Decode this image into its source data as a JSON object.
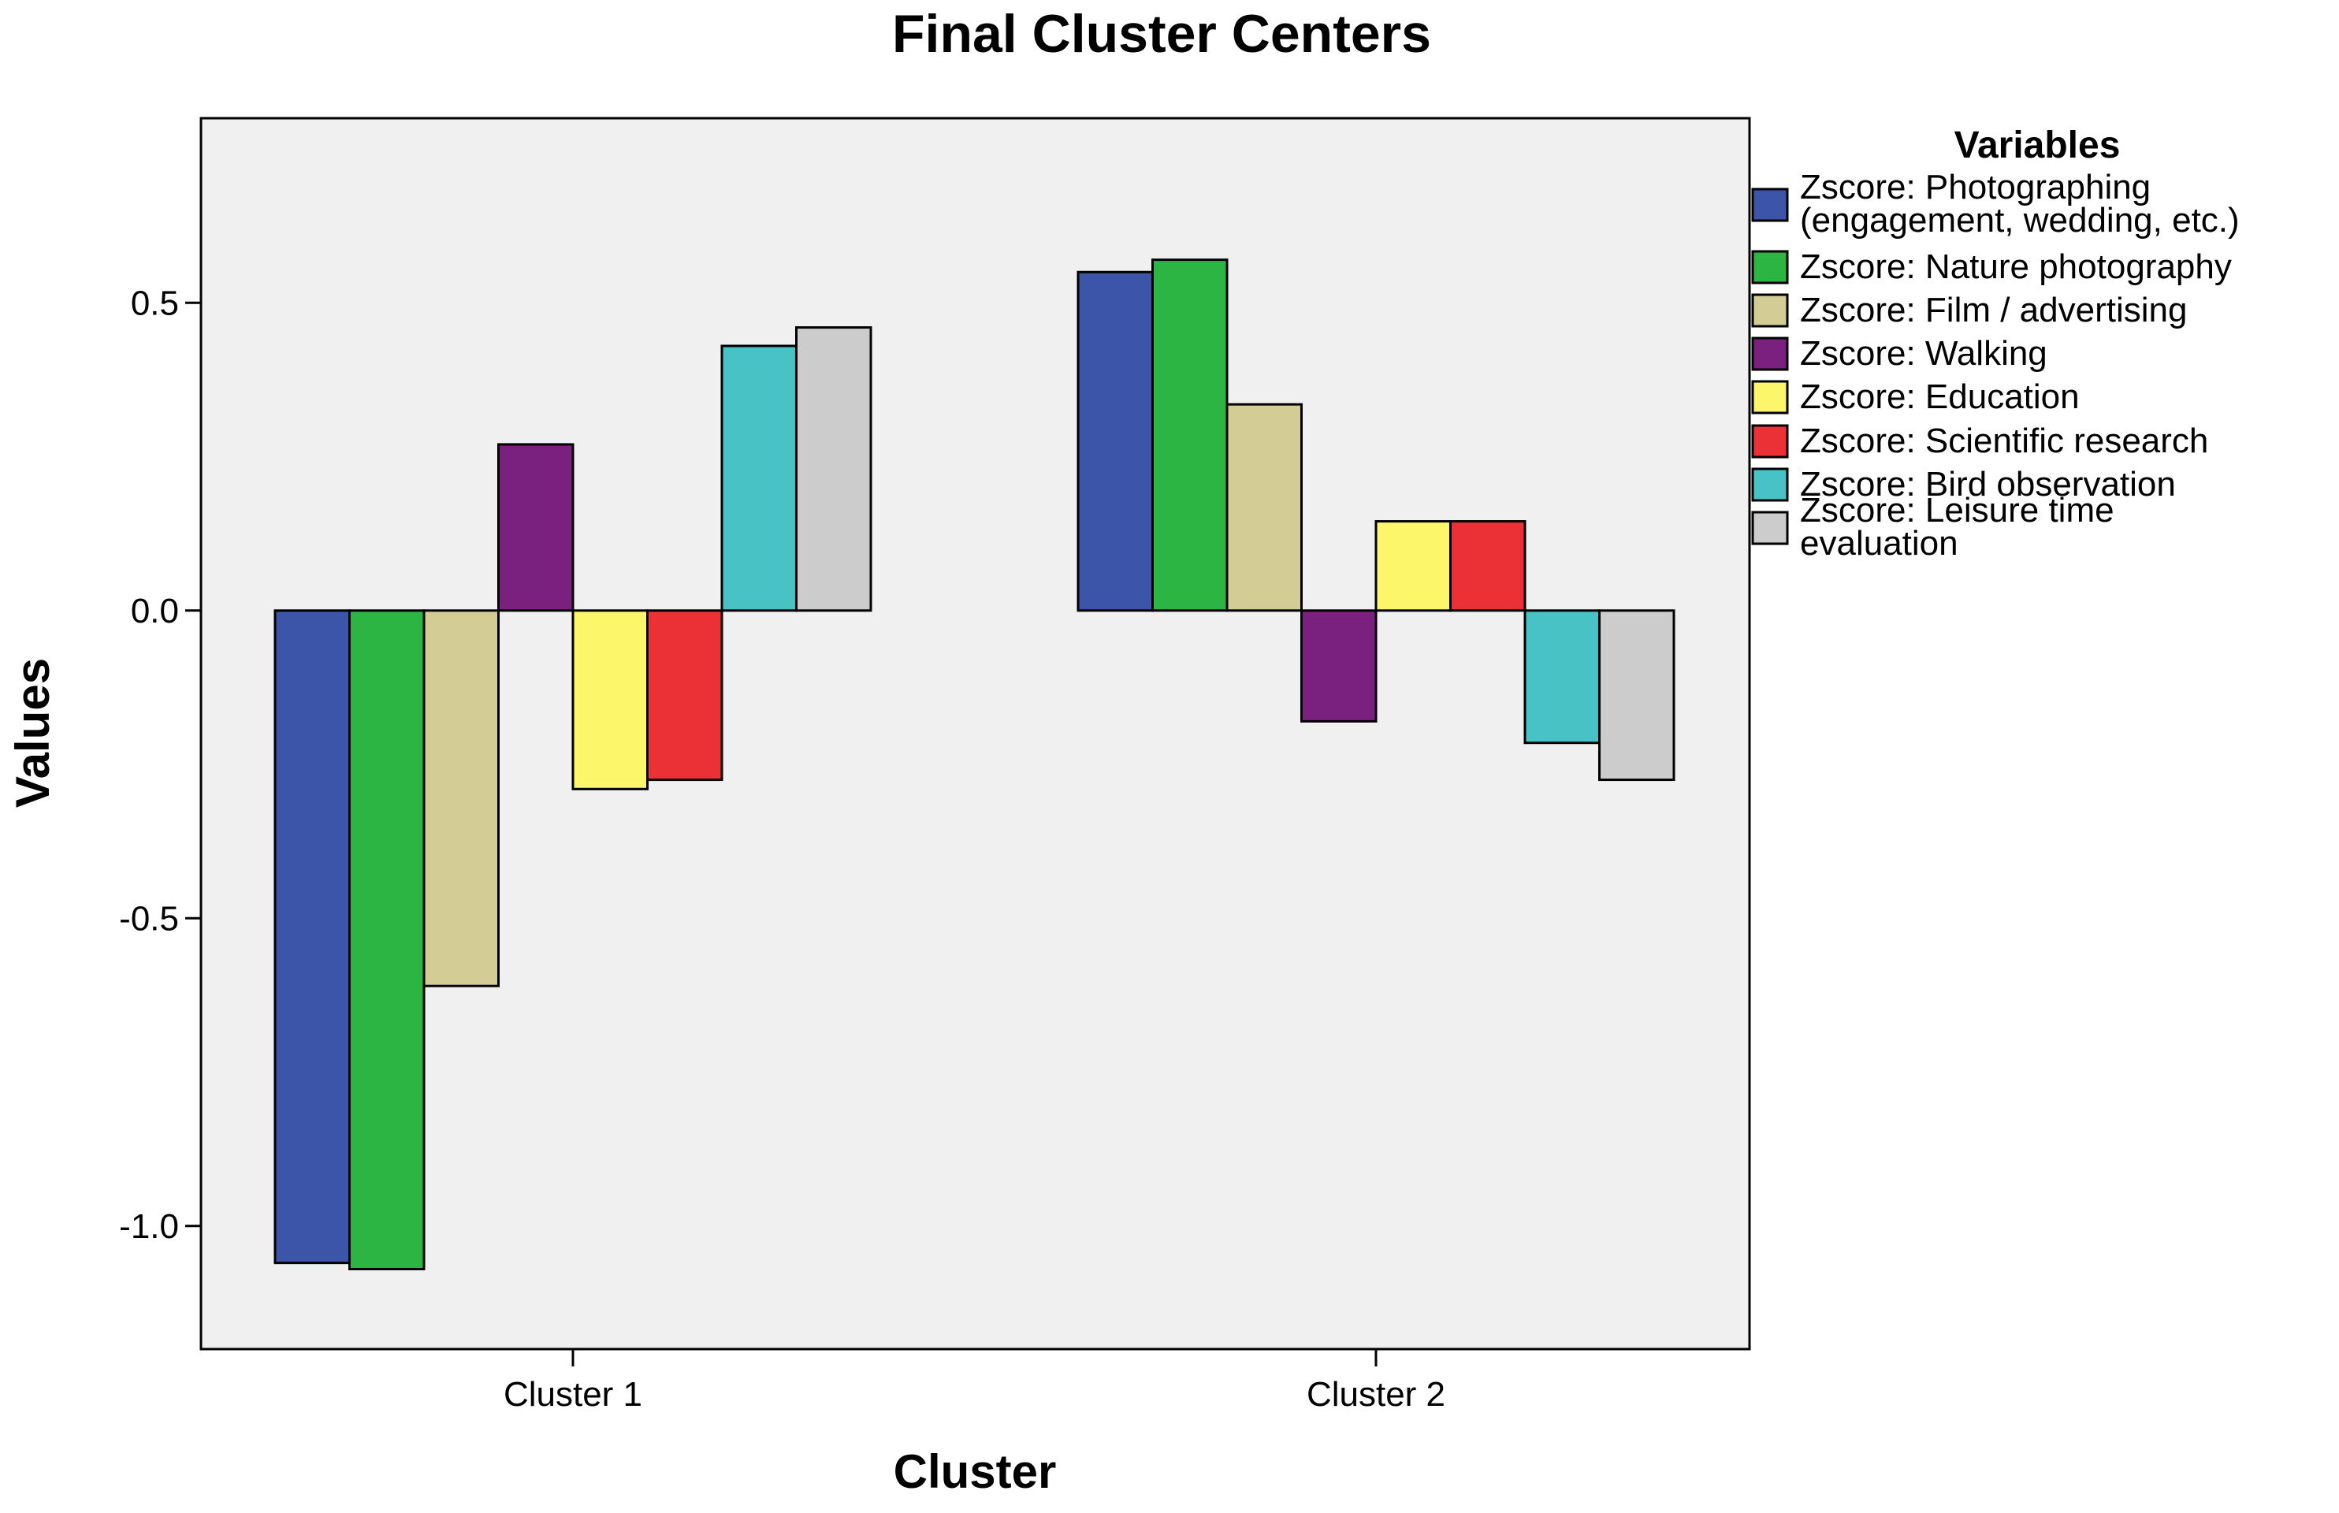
{
  "chart_data": {
    "type": "bar",
    "title": "Final Cluster Centers",
    "xlabel": "Cluster",
    "ylabel": "Values",
    "ylim": [
      -1.2,
      0.8
    ],
    "yticks": [
      0.5,
      0.0,
      -0.5,
      -1.0
    ],
    "ytick_labels": [
      "0.5",
      "0.0",
      "-0.5",
      "-1.0"
    ],
    "categories": [
      "Cluster 1",
      "Cluster 2"
    ],
    "grid": false,
    "legend_position": "right",
    "legend_title": "Variables",
    "series": [
      {
        "name": "Zscore:  Photographing (engagement, wedding, etc.)",
        "lines": [
          "Zscore:  Photographing",
          "(engagement, wedding, etc.)"
        ],
        "color": "#3d55a8",
        "values": [
          -1.06,
          0.55
        ]
      },
      {
        "name": "Zscore:  Nature photography",
        "lines": [
          "Zscore:  Nature photography"
        ],
        "color": "#2db543",
        "values": [
          -1.07,
          0.57
        ]
      },
      {
        "name": "Zscore:  Film / advertising",
        "lines": [
          "Zscore:  Film / advertising"
        ],
        "color": "#d3cd95",
        "values": [
          -0.61,
          0.335
        ]
      },
      {
        "name": "Zscore:  Walking",
        "lines": [
          "Zscore:  Walking"
        ],
        "color": "#7a2180",
        "values": [
          0.27,
          -0.18
        ]
      },
      {
        "name": "Zscore:  Education",
        "lines": [
          "Zscore:  Education"
        ],
        "color": "#fbf66a",
        "values": [
          -0.29,
          0.145
        ]
      },
      {
        "name": "Zscore:  Scientific research",
        "lines": [
          "Zscore:  Scientific research"
        ],
        "color": "#ec3136",
        "values": [
          -0.275,
          0.145
        ]
      },
      {
        "name": "Zscore:  Bird observation",
        "lines": [
          "Zscore:  Bird observation"
        ],
        "color": "#48c2c5",
        "values": [
          0.43,
          -0.215
        ]
      },
      {
        "name": "Zscore:  Leisure time evaluation",
        "lines": [
          "Zscore:  Leisure time",
          "evaluation"
        ],
        "color": "#cccccc",
        "values": [
          0.46,
          -0.275
        ]
      }
    ],
    "plot_background": "#f0f0f0"
  }
}
